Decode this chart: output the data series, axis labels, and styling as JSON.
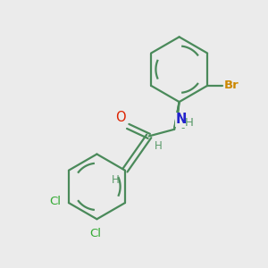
{
  "background_color": "#ebebeb",
  "bond_color": "#4a8a5a",
  "bond_color_green": "#4a8a5a",
  "bond_width": 1.6,
  "atom_colors": {
    "O": "#dd2200",
    "N": "#2222cc",
    "Br": "#cc8800",
    "Cl": "#33aa33",
    "H": "#5a9a6a"
  },
  "font_size": 9.5
}
